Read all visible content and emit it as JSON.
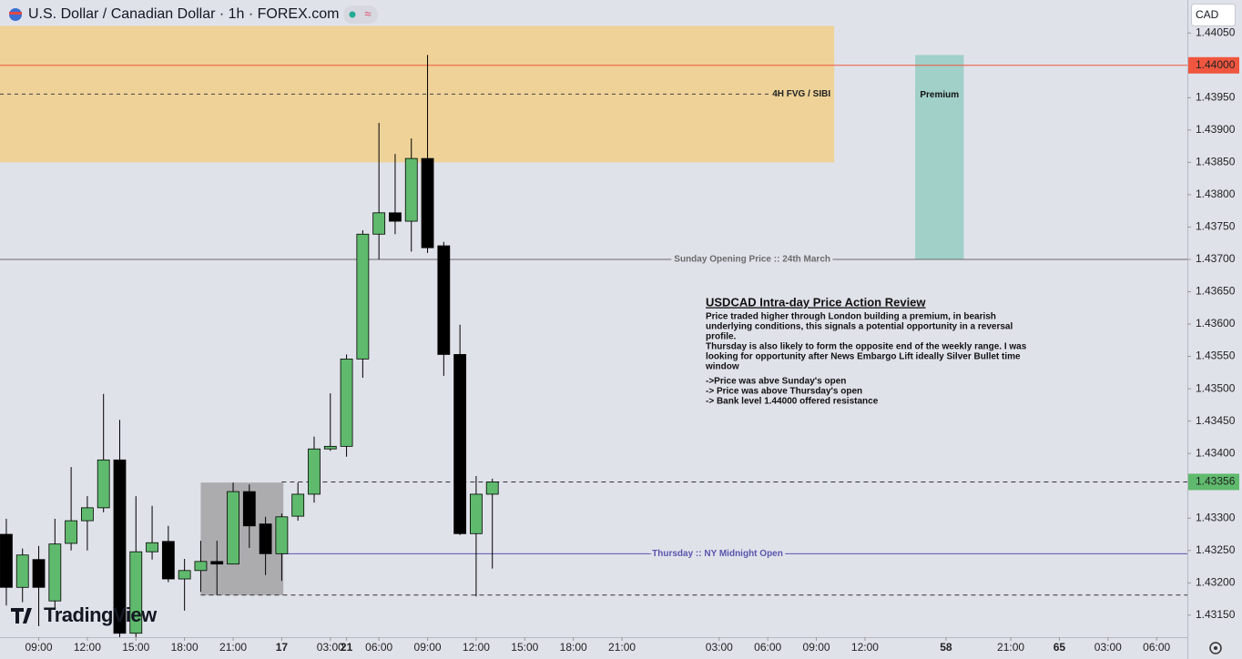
{
  "header": {
    "symbol": "U.S. Dollar / Canadian Dollar · 1h · FOREX.com",
    "currency": "CAD"
  },
  "watermark": "TradingView",
  "note": {
    "title": "USDCAD Intra-day Price Action Review",
    "lines": [
      "Price traded higher through London building a premium, in bearish",
      "underlying conditions, this signals a potential opportunity in a reversal",
      "profile.",
      "Thursday is also likely to form the opposite end of the weekly range. I was",
      "looking for opportunity after News Embargo Lift ideally Silver Bullet  time",
      "window",
      "->Price was abve Sunday's open",
      "-> Price was above Thursday's open",
      "-> Bank level 1.44000 offered resistance"
    ]
  },
  "chart_data": {
    "type": "candlestick",
    "up_color": "#5fba6d",
    "down_color": "#000000",
    "open": [
      1.43275,
      1.43193,
      1.43236,
      1.43172,
      1.43261,
      1.43296,
      1.43316,
      1.4339,
      1.43122,
      1.43248,
      1.43264,
      1.43206,
      1.43219,
      1.43233,
      1.43229,
      1.43341,
      1.43291,
      1.43245,
      1.43303,
      1.43337,
      1.43407,
      1.43411,
      1.43546,
      1.43739,
      1.43772,
      1.43759,
      1.43856,
      1.43721,
      1.43553,
      1.43276,
      1.43337
    ],
    "high": [
      1.43299,
      1.43253,
      1.43257,
      1.43299,
      1.43379,
      1.43334,
      1.43492,
      1.43452,
      1.43334,
      1.43319,
      1.43288,
      1.43237,
      1.43265,
      1.43265,
      1.43355,
      1.43352,
      1.43302,
      1.43307,
      1.43355,
      1.43426,
      1.43493,
      1.43553,
      1.43745,
      1.43911,
      1.43863,
      1.43887,
      1.44016,
      1.43727,
      1.43599,
      1.43365,
      1.43361
    ],
    "low": [
      1.43165,
      1.4317,
      1.43133,
      1.43161,
      1.4325,
      1.4325,
      1.43309,
      1.43116,
      1.43116,
      1.43236,
      1.43201,
      1.43157,
      1.43186,
      1.43181,
      1.43229,
      1.43254,
      1.43212,
      1.43203,
      1.43296,
      1.43324,
      1.43404,
      1.43395,
      1.43517,
      1.437,
      1.43739,
      1.43712,
      1.4371,
      1.4352,
      1.43274,
      1.43179,
      1.43222
    ],
    "close": [
      1.43193,
      1.43243,
      1.43193,
      1.4326,
      1.43296,
      1.43316,
      1.4339,
      1.43122,
      1.43248,
      1.43262,
      1.43206,
      1.43219,
      1.43233,
      1.43229,
      1.43341,
      1.43288,
      1.43245,
      1.43302,
      1.43337,
      1.43407,
      1.43411,
      1.43546,
      1.43739,
      1.43772,
      1.43759,
      1.43856,
      1.43718,
      1.43553,
      1.43276,
      1.43337,
      1.43356
    ],
    "xlim": [
      -0.39,
      72.9
    ],
    "ylim": [
      1.43116,
      1.44101
    ],
    "xticks": [
      {
        "value": 2,
        "label": "09:00"
      },
      {
        "value": 5,
        "label": "12:00"
      },
      {
        "value": 8,
        "label": "15:00"
      },
      {
        "value": 11,
        "label": "18:00"
      },
      {
        "value": 14,
        "label": "21:00"
      },
      17,
      {
        "value": 20,
        "label": "03:00"
      },
      {
        "value": 23,
        "label": "06:00"
      },
      {
        "value": 26,
        "label": "09:00"
      },
      {
        "value": 29,
        "label": "12:00"
      },
      {
        "value": 32,
        "label": "15:00"
      },
      {
        "value": 35,
        "label": "18:00"
      },
      {
        "value": 38,
        "label": "21:00"
      },
      21,
      {
        "value": 44,
        "label": "03:00"
      },
      {
        "value": 47,
        "label": "06:00"
      },
      {
        "value": 50,
        "label": "09:00"
      },
      {
        "value": 53,
        "label": "12:00"
      },
      58,
      {
        "value": 62,
        "label": "21:00"
      },
      65,
      {
        "value": 68,
        "label": "03:00"
      },
      {
        "value": 71,
        "label": "06:00"
      }
    ],
    "yticks": [
      {
        "value": 1.4405,
        "label": "1.44050"
      },
      {
        "value": 1.4395,
        "label": "1.43950"
      },
      {
        "value": 1.439,
        "label": "1.43900"
      },
      {
        "value": 1.4385,
        "label": "1.43850"
      },
      {
        "value": 1.438,
        "label": "1.43800"
      },
      {
        "value": 1.4375,
        "label": "1.43750"
      },
      {
        "value": 1.437,
        "label": "1.43700"
      },
      {
        "value": 1.4365,
        "label": "1.43650"
      },
      {
        "value": 1.436,
        "label": "1.43600"
      },
      {
        "value": 1.4355,
        "label": "1.43550"
      },
      {
        "value": 1.435,
        "label": "1.43500"
      },
      {
        "value": 1.4345,
        "label": "1.43450"
      },
      {
        "value": 1.434,
        "label": "1.43400"
      },
      {
        "value": 1.433,
        "label": "1.43300"
      },
      {
        "value": 1.4325,
        "label": "1.43250"
      },
      {
        "value": 1.432,
        "label": "1.43200"
      },
      {
        "value": 1.4315,
        "label": "1.43150"
      }
    ],
    "zones": [
      {
        "label": "4H FVG / SIBI",
        "top": 1.44061,
        "bottom": 1.4385,
        "start": -0.39,
        "end": 51.1,
        "color": "#eed193",
        "midline": true
      },
      {
        "label": "Premium",
        "top": 1.44016,
        "bottom": 1.437,
        "start": 56.1,
        "end": 59.1,
        "color": "#9dcfc6"
      },
      {
        "top": 1.43355,
        "bottom": 1.43181,
        "start": 12,
        "end": 17.1,
        "color": "#a9a9ac"
      }
    ],
    "lines": [
      {
        "price": {
          "value": 1.44,
          "label": "1.44000"
        },
        "start": -0.39,
        "color": "#f0563f"
      },
      {
        "price": 1.437,
        "label": "Sunday Opening Price :: 24th March",
        "start": -0.39,
        "color": "#6b6b6b"
      },
      {
        "price": {
          "value": 1.43356,
          "label": "1.43356"
        },
        "start": 17,
        "color": "#333333",
        "dashed": true,
        "axis_color": "#5fba6d"
      },
      {
        "price": 1.43245,
        "label": "Thursday :: NY Midnight Open",
        "start": 17,
        "color": "#5a55ad"
      },
      {
        "price": 1.43181,
        "start": 12,
        "color": "#333333",
        "dashed": true
      }
    ]
  }
}
